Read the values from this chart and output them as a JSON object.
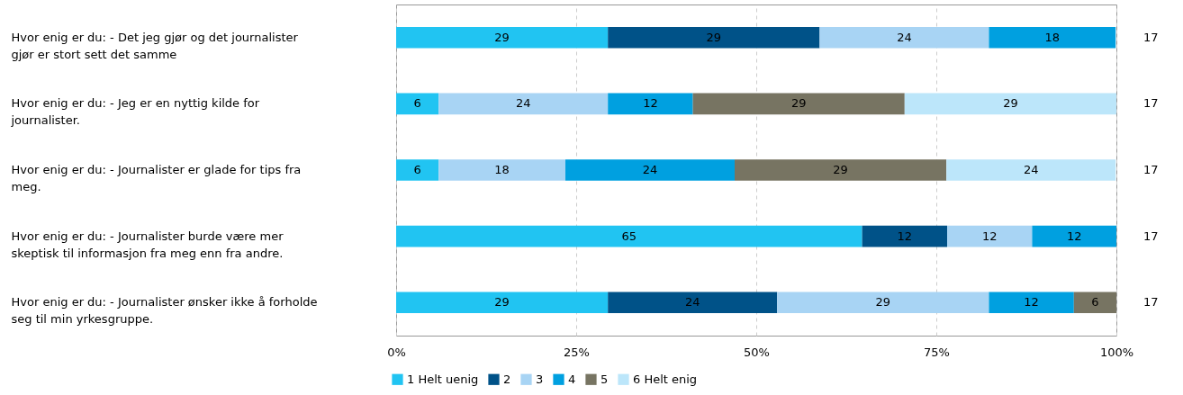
{
  "chart_data": {
    "type": "bar",
    "orientation": "horizontal",
    "stacked": true,
    "grid": "x",
    "legend": "bottom left",
    "line_style": "dashed",
    "categories": [
      "Hvor enig er du: - Det jeg gjør og det journalister gjør er stort sett det samme",
      "Hvor enig er du: - Jeg er en nyttig kilde for journalister.",
      "Hvor enig er du: - Journalister er glade for tips fra meg.",
      "Hvor enig er du: - Journalister burde være mer skeptisk til informasjon fra meg enn fra andre.",
      "Hvor enig er du: - Journalister ønsker ikke å forholde seg til min yrkesgruppe."
    ],
    "series": [
      {
        "name": "1 Helt uenig",
        "color": "#21c4f2",
        "values": [
          29.4,
          5.9,
          5.9,
          64.7,
          29.4
        ],
        "value_labels": [
          "29",
          "6",
          "6",
          "65",
          "29"
        ]
      },
      {
        "name": "2",
        "color": "#005288",
        "values": [
          29.4,
          null,
          null,
          11.8,
          23.5
        ],
        "value_labels": [
          "29",
          null,
          null,
          "12",
          "24"
        ]
      },
      {
        "name": "3",
        "color": "#a8d4f4",
        "values": [
          23.5,
          23.5,
          17.6,
          11.8,
          29.4
        ],
        "value_labels": [
          "24",
          "24",
          "18",
          "12",
          "29"
        ]
      },
      {
        "name": "4",
        "color": "#00a0e0",
        "values": [
          17.6,
          11.8,
          23.5,
          11.7,
          11.8
        ],
        "value_labels": [
          "18",
          "12",
          "24",
          "12",
          "12"
        ]
      },
      {
        "name": "5",
        "color": "#777462",
        "values": [
          null,
          29.4,
          29.4,
          null,
          5.9
        ],
        "value_labels": [
          null,
          "29",
          "29",
          null,
          "6"
        ]
      },
      {
        "name": "6 Helt enig",
        "color": "#bce6fa",
        "values": [
          null,
          29.4,
          23.5,
          null,
          null
        ],
        "value_labels": [
          null,
          "29",
          "24",
          null,
          null
        ]
      }
    ],
    "annotations": [
      "17",
      "17",
      "17",
      "17",
      "17"
    ],
    "xlim": [
      0,
      100
    ],
    "xticks": [
      {
        "value": 0,
        "label": "0%"
      },
      {
        "value": 25,
        "label": "25%"
      },
      {
        "value": 50,
        "label": "50%"
      },
      {
        "value": 75,
        "label": "75%"
      },
      {
        "value": 100,
        "label": "100%"
      }
    ]
  }
}
